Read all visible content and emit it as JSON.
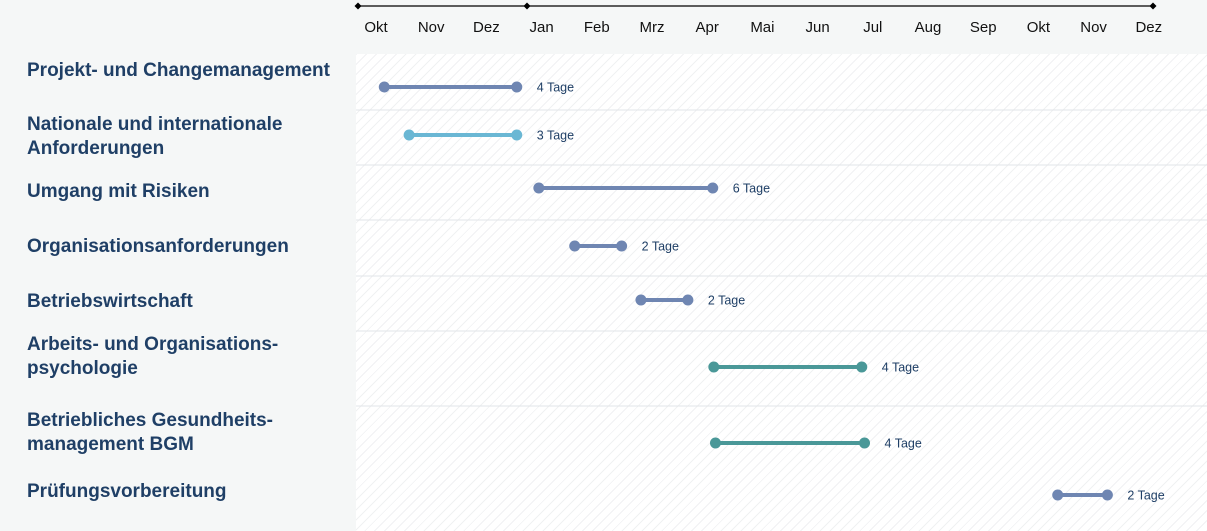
{
  "chart_data": {
    "type": "timeline",
    "months": [
      "Okt",
      "Nov",
      "Dez",
      "Jan",
      "Feb",
      "Mrz",
      "Apr",
      "Mai",
      "Jun",
      "Jul",
      "Aug",
      "Sep",
      "Okt",
      "Nov",
      "Dez"
    ],
    "rows": [
      {
        "label": "Projekt- und Changemanagement",
        "start": 0.15,
        "end": 2.55,
        "duration": "4 Tage",
        "color": "#6f86b2"
      },
      {
        "label": "Nationale und internationale\nAnforderungen",
        "start": 0.6,
        "end": 2.55,
        "duration": "3 Tage",
        "color": "#6ab7d4"
      },
      {
        "label": "Umgang mit Risiken",
        "start": 2.95,
        "end": 6.1,
        "duration": "6 Tage",
        "color": "#6f86b2"
      },
      {
        "label": "Organisationsanforderungen",
        "start": 3.6,
        "end": 4.45,
        "duration": "2 Tage",
        "color": "#6f86b2"
      },
      {
        "label": "Betriebswirtschaft",
        "start": 4.8,
        "end": 5.65,
        "duration": "2 Tage",
        "color": "#6f86b2"
      },
      {
        "label": "Arbeits- und Organisations-\npsychologie",
        "start": 6.12,
        "end": 8.8,
        "duration": "4 Tage",
        "color": "#4a9898"
      },
      {
        "label": "Betriebliches Gesundheits-\nmanagement BGM",
        "start": 6.15,
        "end": 8.85,
        "duration": "4 Tage",
        "color": "#4a9898"
      },
      {
        "label": "Prüfungsvorbereitung",
        "start": 12.35,
        "end": 13.25,
        "duration": "2 Tage",
        "color": "#6f86b2"
      }
    ]
  },
  "colors": {
    "label_text": "#1f3f66",
    "divider": "#e2e5e8",
    "axis": "#000000"
  }
}
